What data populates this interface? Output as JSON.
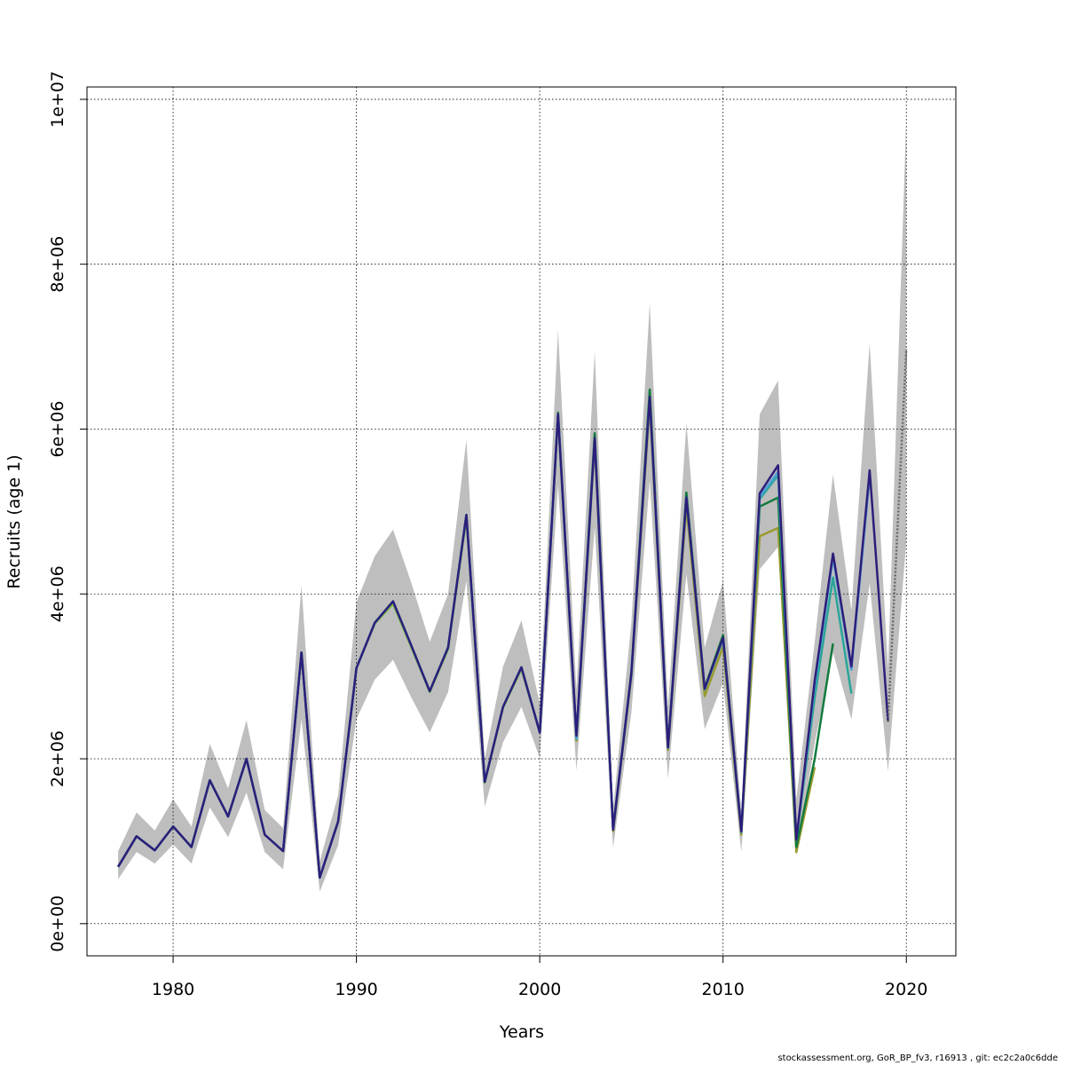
{
  "chart_data": {
    "type": "line",
    "xlabel": "Years",
    "ylabel": "Recruits (age 1)",
    "xlim": [
      1975.3,
      2022.7
    ],
    "ylim": [
      -390000,
      10150000
    ],
    "xticks": [
      1980,
      1990,
      2000,
      2010,
      2020
    ],
    "xtick_labels": [
      "1980",
      "1990",
      "2000",
      "2010",
      "2020"
    ],
    "yticks": [
      0,
      2000000,
      4000000,
      6000000,
      8000000,
      10000000
    ],
    "ytick_labels": [
      "0e+00",
      "2e+06",
      "4e+06",
      "6e+06",
      "8e+06",
      "1e+07"
    ],
    "grid": true,
    "band": {
      "color": "#bebebe",
      "x": [
        1977,
        1978,
        1979,
        1980,
        1981,
        1982,
        1983,
        1984,
        1985,
        1986,
        1987,
        1988,
        1989,
        1990,
        1991,
        1992,
        1993,
        1994,
        1995,
        1996,
        1997,
        1998,
        1999,
        2000,
        2001,
        2002,
        2003,
        2004,
        2005,
        2006,
        2007,
        2008,
        2009,
        2010,
        2011,
        2012,
        2013,
        2014,
        2015,
        2016,
        2017,
        2018,
        2019,
        2020
      ],
      "upper": [
        880000,
        1350000,
        1130000,
        1510000,
        1180000,
        2180000,
        1640000,
        2470000,
        1380000,
        1160000,
        4110000,
        760000,
        1560000,
        3900000,
        4460000,
        4780000,
        4130000,
        3420000,
        4000000,
        5870000,
        2000000,
        3120000,
        3680000,
        2670000,
        7200000,
        2830000,
        6940000,
        1390000,
        3650000,
        7530000,
        2630000,
        6070000,
        3350000,
        4160000,
        1360000,
        6180000,
        6590000,
        1510000,
        3420000,
        5450000,
        3800000,
        7040000,
        3100000,
        9760000
      ],
      "lower": [
        540000,
        870000,
        730000,
        960000,
        730000,
        1410000,
        1050000,
        1590000,
        870000,
        660000,
        2480000,
        390000,
        950000,
        2480000,
        2960000,
        3200000,
        2740000,
        2320000,
        2810000,
        4160000,
        1420000,
        2200000,
        2630000,
        2010000,
        5320000,
        1860000,
        4810000,
        920000,
        2560000,
        5380000,
        1760000,
        4240000,
        2360000,
        2920000,
        870000,
        4300000,
        4570000,
        820000,
        2190000,
        3290000,
        2480000,
        4130000,
        1850000,
        4640000
      ]
    },
    "series": [
      {
        "color": "#666666",
        "dashed": true,
        "x": [
          2019,
          2020
        ],
        "values": [
          2450000,
          6970000
        ]
      },
      {
        "color": "#2d1e7a",
        "x": [
          1977,
          1978,
          1979,
          1980,
          1981,
          1982,
          1983,
          1984,
          1985,
          1986,
          1987,
          1988,
          1989,
          1990,
          1991,
          1992,
          1993,
          1994,
          1995,
          1996,
          1997,
          1998,
          1999,
          2000,
          2001,
          2002,
          2003,
          2004,
          2005,
          2006,
          2007,
          2008,
          2009,
          2010,
          2011,
          2012,
          2013,
          2014,
          2015,
          2016,
          2017,
          2018,
          2019
        ],
        "values": [
          690000,
          1060000,
          890000,
          1180000,
          930000,
          1740000,
          1300000,
          2000000,
          1080000,
          880000,
          3290000,
          560000,
          1240000,
          3100000,
          3650000,
          3910000,
          3370000,
          2820000,
          3350000,
          4960000,
          1720000,
          2630000,
          3110000,
          2320000,
          6180000,
          2280000,
          5890000,
          1140000,
          3040000,
          6390000,
          2140000,
          5170000,
          2850000,
          3470000,
          1120000,
          5220000,
          5560000,
          1020000,
          2950000,
          4490000,
          3120000,
          5500000,
          2450000
        ]
      },
      {
        "color": "#4f9fd8",
        "x": [
          1977,
          1978,
          1979,
          1980,
          1981,
          1982,
          1983,
          1984,
          1985,
          1986,
          1987,
          1988,
          1989,
          1990,
          1991,
          1992,
          1993,
          1994,
          1995,
          1996,
          1997,
          1998,
          1999,
          2000,
          2001,
          2002,
          2003,
          2004,
          2005,
          2006,
          2007,
          2008,
          2009,
          2010,
          2011,
          2012,
          2013,
          2014,
          2015,
          2016,
          2017,
          2018
        ],
        "values": [
          690000,
          1060000,
          890000,
          1180000,
          930000,
          1740000,
          1300000,
          2000000,
          1080000,
          880000,
          3290000,
          560000,
          1240000,
          3100000,
          3650000,
          3910000,
          3370000,
          2820000,
          3350000,
          4960000,
          1720000,
          2630000,
          3110000,
          2320000,
          6180000,
          2250000,
          5880000,
          1140000,
          3030000,
          6380000,
          2140000,
          5170000,
          2850000,
          3460000,
          1120000,
          5180000,
          5480000,
          1020000,
          2900000,
          4440000,
          3080000,
          5420000
        ]
      },
      {
        "color": "#2aa59a",
        "x": [
          1977,
          1978,
          1979,
          1980,
          1981,
          1982,
          1983,
          1984,
          1985,
          1986,
          1987,
          1988,
          1989,
          1990,
          1991,
          1992,
          1993,
          1994,
          1995,
          1996,
          1997,
          1998,
          1999,
          2000,
          2001,
          2002,
          2003,
          2004,
          2005,
          2006,
          2007,
          2008,
          2009,
          2010,
          2011,
          2012,
          2013,
          2014,
          2015,
          2016,
          2017
        ],
        "values": [
          690000,
          1060000,
          890000,
          1180000,
          930000,
          1740000,
          1300000,
          2000000,
          1080000,
          880000,
          3290000,
          560000,
          1240000,
          3100000,
          3650000,
          3910000,
          3370000,
          2820000,
          3350000,
          4960000,
          1720000,
          2630000,
          3110000,
          2320000,
          6180000,
          2240000,
          5880000,
          1140000,
          3030000,
          6380000,
          2130000,
          5160000,
          2840000,
          3450000,
          1110000,
          5150000,
          5440000,
          1020000,
          2750000,
          4200000,
          2790000
        ]
      },
      {
        "color": "#137a3e",
        "x": [
          1977,
          1978,
          1979,
          1980,
          1981,
          1982,
          1983,
          1984,
          1985,
          1986,
          1987,
          1988,
          1989,
          1990,
          1991,
          1992,
          1993,
          1994,
          1995,
          1996,
          1997,
          1998,
          1999,
          2000,
          2001,
          2002,
          2003,
          2004,
          2005,
          2006,
          2007,
          2008,
          2009,
          2010,
          2011,
          2012,
          2013,
          2014,
          2015,
          2016
        ],
        "values": [
          690000,
          1060000,
          890000,
          1180000,
          930000,
          1740000,
          1300000,
          2000000,
          1080000,
          880000,
          3290000,
          560000,
          1240000,
          3100000,
          3650000,
          3910000,
          3370000,
          2820000,
          3350000,
          4960000,
          1720000,
          2630000,
          3110000,
          2320000,
          6200000,
          2260000,
          5950000,
          1140000,
          3050000,
          6480000,
          2140000,
          5230000,
          2860000,
          3500000,
          1120000,
          5060000,
          5170000,
          930000,
          2000000,
          3400000
        ]
      },
      {
        "color": "#9a9a30",
        "x": [
          1977,
          1978,
          1979,
          1980,
          1981,
          1982,
          1983,
          1984,
          1985,
          1986,
          1987,
          1988,
          1989,
          1990,
          1991,
          1992,
          1993,
          1994,
          1995,
          1996,
          1997,
          1998,
          1999,
          2000,
          2001,
          2002,
          2003,
          2004,
          2005,
          2006,
          2007,
          2008,
          2009,
          2010,
          2011,
          2012,
          2013,
          2014,
          2015
        ],
        "values": [
          690000,
          1060000,
          890000,
          1180000,
          930000,
          1740000,
          1300000,
          2000000,
          1080000,
          880000,
          3290000,
          560000,
          1240000,
          3100000,
          3650000,
          3910000,
          3370000,
          2820000,
          3350000,
          4960000,
          1720000,
          2630000,
          3110000,
          2320000,
          6150000,
          2220000,
          5830000,
          1120000,
          3000000,
          6300000,
          2110000,
          5060000,
          2760000,
          3360000,
          1080000,
          4700000,
          4800000,
          870000,
          1900000
        ]
      },
      {
        "color": "#7cbf3a",
        "x": [
          1977,
          1978,
          1979,
          1980,
          1981,
          1982,
          1983,
          1984,
          1985,
          1986,
          1987,
          1988,
          1989,
          1990,
          1991,
          1992,
          1993,
          1994,
          1995,
          1996,
          1997,
          1998,
          1999,
          2000
        ],
        "values": [
          690000,
          1060000,
          890000,
          1180000,
          930000,
          1740000,
          1300000,
          2000000,
          1080000,
          880000,
          3290000,
          560000,
          1240000,
          3100000,
          3640000,
          3880000,
          3350000,
          2810000,
          3330000,
          4920000,
          1710000,
          2620000,
          3090000,
          2320000
        ]
      }
    ]
  },
  "footer": "stockassessment.org, GoR_BP_fv3, r16913 , git: ec2c2a0c6dde"
}
